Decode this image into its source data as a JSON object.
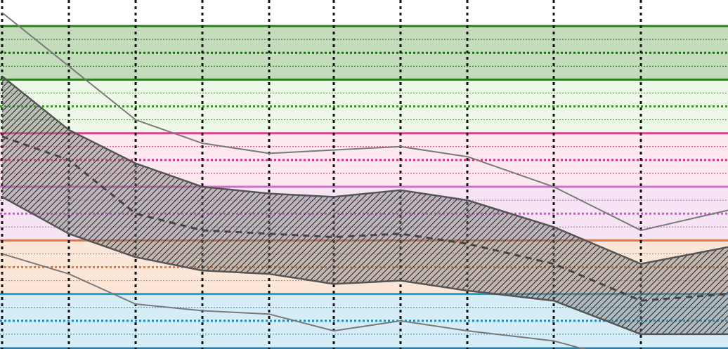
{
  "chart_data": {
    "type": "area",
    "title": "",
    "xlabel": "",
    "ylabel": "",
    "x": [
      0,
      1,
      2,
      3,
      4,
      5,
      6,
      7,
      8,
      9,
      10
    ],
    "xlim": [
      0,
      10.8
    ],
    "ylim": [
      0,
      100
    ],
    "grid": {
      "vertical": true,
      "horizontal_bands": true
    },
    "bands": [
      {
        "name": "green-dark",
        "from": 80,
        "to": 96,
        "fill": "#c4dcbc",
        "line": "#2e7d1e",
        "dotted": "#1f6b16"
      },
      {
        "name": "green-light",
        "from": 64,
        "to": 80,
        "fill": "#eef8e8",
        "line": "#2e7d1e",
        "dotted": "#3f8f2c"
      },
      {
        "name": "pink",
        "from": 48,
        "to": 64,
        "fill": "#fde8f0",
        "line": "#e0408a",
        "dotted": "#d8307e"
      },
      {
        "name": "purple",
        "from": 32,
        "to": 48,
        "fill": "#f6e4f4",
        "line": "#d070c8",
        "dotted": "#c060c0"
      },
      {
        "name": "orange",
        "from": 16,
        "to": 32,
        "fill": "#fbe6d8",
        "line": "#e8743a",
        "dotted": "#e07a40"
      },
      {
        "name": "blue",
        "from": 0,
        "to": 16,
        "fill": "#d6ecf6",
        "line": "#2c9fc8",
        "dotted": "#1a90c0"
      }
    ],
    "series": [
      {
        "role": "outer-upper",
        "style": "solid-thin",
        "color": "#7a7a7a",
        "values": [
          100,
          84,
          68,
          61,
          58,
          59,
          60,
          57,
          48,
          35,
          41
        ]
      },
      {
        "role": "band-upper",
        "style": "solid",
        "color": "#555555",
        "values": [
          81,
          65,
          55,
          48,
          46,
          45,
          47,
          44,
          36,
          25,
          30
        ]
      },
      {
        "role": "median",
        "style": "dashed",
        "color": "#444444",
        "values": [
          63,
          56,
          40,
          35,
          34,
          33,
          34,
          31,
          25,
          14,
          16
        ]
      },
      {
        "role": "band-lower",
        "style": "solid",
        "color": "#555555",
        "values": [
          45,
          34,
          27,
          23,
          22,
          19,
          20,
          17,
          14,
          4,
          4
        ]
      },
      {
        "role": "outer-lower",
        "style": "solid-thin",
        "color": "#7a7a7a",
        "values": [
          28,
          22,
          13,
          11,
          10,
          5,
          8,
          5,
          2,
          -5,
          -4
        ]
      }
    ],
    "colors": {
      "band_fill": "#555555",
      "hatch_line": "#222222",
      "vgrid": "#111111"
    }
  }
}
